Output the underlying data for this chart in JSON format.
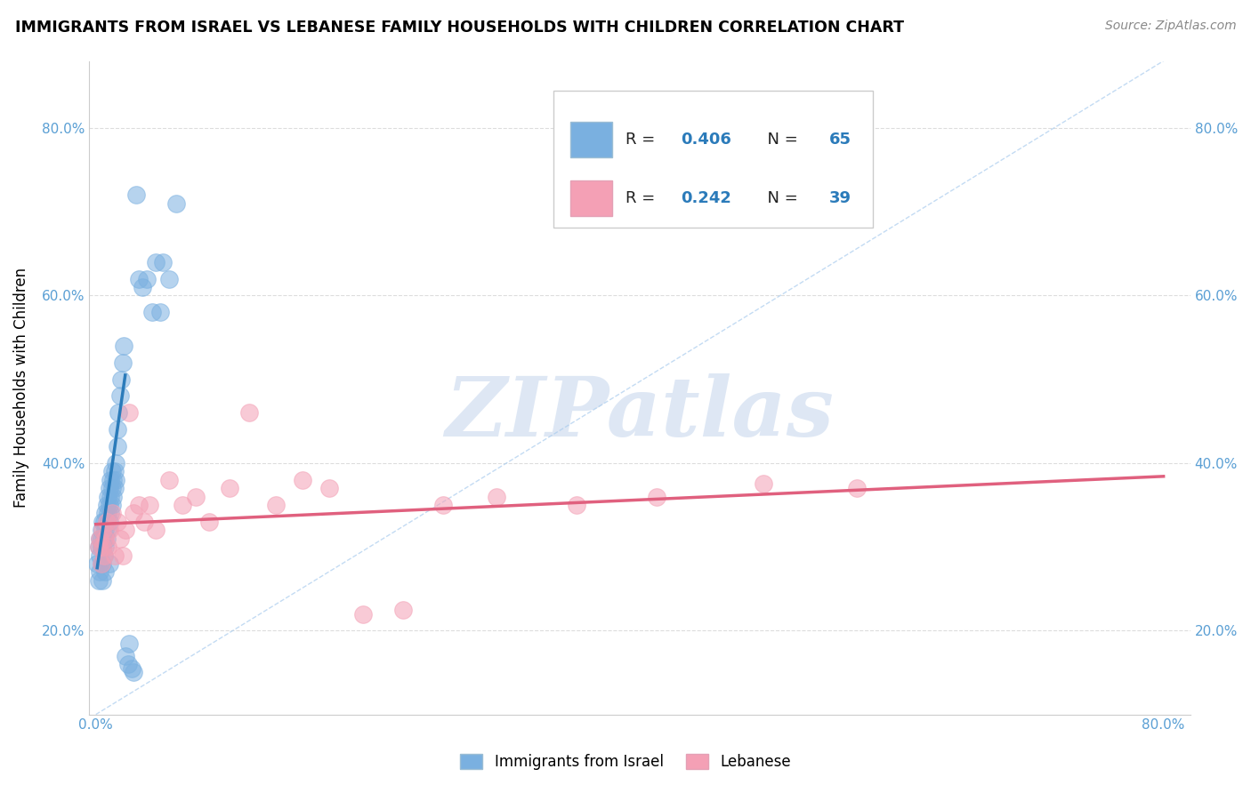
{
  "title": "IMMIGRANTS FROM ISRAEL VS LEBANESE FAMILY HOUSEHOLDS WITH CHILDREN CORRELATION CHART",
  "source": "Source: ZipAtlas.com",
  "ylabel": "Family Households with Children",
  "legend_label1": "Immigrants from Israel",
  "legend_label2": "Lebanese",
  "R1": 0.406,
  "N1": 65,
  "R2": 0.242,
  "N2": 39,
  "color1": "#7ab0e0",
  "color2": "#f4a0b5",
  "trendline1_color": "#2b7bba",
  "trendline2_color": "#e0607e",
  "background": "#ffffff",
  "xlim": [
    -0.005,
    0.82
  ],
  "ylim": [
    0.1,
    0.88
  ],
  "xticks": [
    0.0,
    0.2,
    0.4,
    0.6,
    0.8
  ],
  "yticks": [
    0.2,
    0.4,
    0.6,
    0.8
  ],
  "xticklabels": [
    "0.0%",
    "",
    "",
    "",
    "80.0%"
  ],
  "yticklabels": [
    "20.0%",
    "40.0%",
    "60.0%",
    "80.0%"
  ],
  "watermark_text": "ZIPatlas",
  "watermark_color": "#c8d8ee",
  "grid_color": "#dddddd",
  "tick_color": "#5a9fd4",
  "blue_x": [
    0.001,
    0.002,
    0.002,
    0.003,
    0.003,
    0.003,
    0.004,
    0.004,
    0.004,
    0.004,
    0.005,
    0.005,
    0.005,
    0.005,
    0.006,
    0.006,
    0.006,
    0.007,
    0.007,
    0.007,
    0.007,
    0.008,
    0.008,
    0.008,
    0.009,
    0.009,
    0.009,
    0.01,
    0.01,
    0.01,
    0.01,
    0.011,
    0.011,
    0.011,
    0.012,
    0.012,
    0.012,
    0.013,
    0.013,
    0.014,
    0.014,
    0.015,
    0.015,
    0.016,
    0.016,
    0.017,
    0.018,
    0.019,
    0.02,
    0.021,
    0.022,
    0.024,
    0.025,
    0.027,
    0.028,
    0.03,
    0.032,
    0.035,
    0.038,
    0.042,
    0.045,
    0.048,
    0.05,
    0.055,
    0.06
  ],
  "blue_y": [
    0.28,
    0.3,
    0.26,
    0.31,
    0.27,
    0.29,
    0.31,
    0.28,
    0.3,
    0.32,
    0.26,
    0.28,
    0.3,
    0.33,
    0.29,
    0.31,
    0.33,
    0.27,
    0.3,
    0.32,
    0.34,
    0.31,
    0.33,
    0.35,
    0.32,
    0.34,
    0.36,
    0.33,
    0.35,
    0.37,
    0.28,
    0.34,
    0.36,
    0.38,
    0.35,
    0.37,
    0.39,
    0.36,
    0.38,
    0.37,
    0.39,
    0.38,
    0.4,
    0.42,
    0.44,
    0.46,
    0.48,
    0.5,
    0.52,
    0.54,
    0.17,
    0.16,
    0.185,
    0.155,
    0.15,
    0.72,
    0.62,
    0.61,
    0.62,
    0.58,
    0.64,
    0.58,
    0.64,
    0.62,
    0.71
  ],
  "pink_x": [
    0.002,
    0.003,
    0.004,
    0.005,
    0.005,
    0.006,
    0.007,
    0.008,
    0.009,
    0.01,
    0.012,
    0.014,
    0.016,
    0.018,
    0.02,
    0.022,
    0.025,
    0.028,
    0.032,
    0.036,
    0.04,
    0.045,
    0.055,
    0.065,
    0.075,
    0.085,
    0.1,
    0.115,
    0.135,
    0.155,
    0.175,
    0.2,
    0.23,
    0.26,
    0.3,
    0.36,
    0.42,
    0.5,
    0.57
  ],
  "pink_y": [
    0.3,
    0.31,
    0.28,
    0.32,
    0.3,
    0.29,
    0.31,
    0.33,
    0.3,
    0.32,
    0.34,
    0.29,
    0.33,
    0.31,
    0.29,
    0.32,
    0.46,
    0.34,
    0.35,
    0.33,
    0.35,
    0.32,
    0.38,
    0.35,
    0.36,
    0.33,
    0.37,
    0.46,
    0.35,
    0.38,
    0.37,
    0.22,
    0.225,
    0.35,
    0.36,
    0.35,
    0.36,
    0.375,
    0.37
  ]
}
